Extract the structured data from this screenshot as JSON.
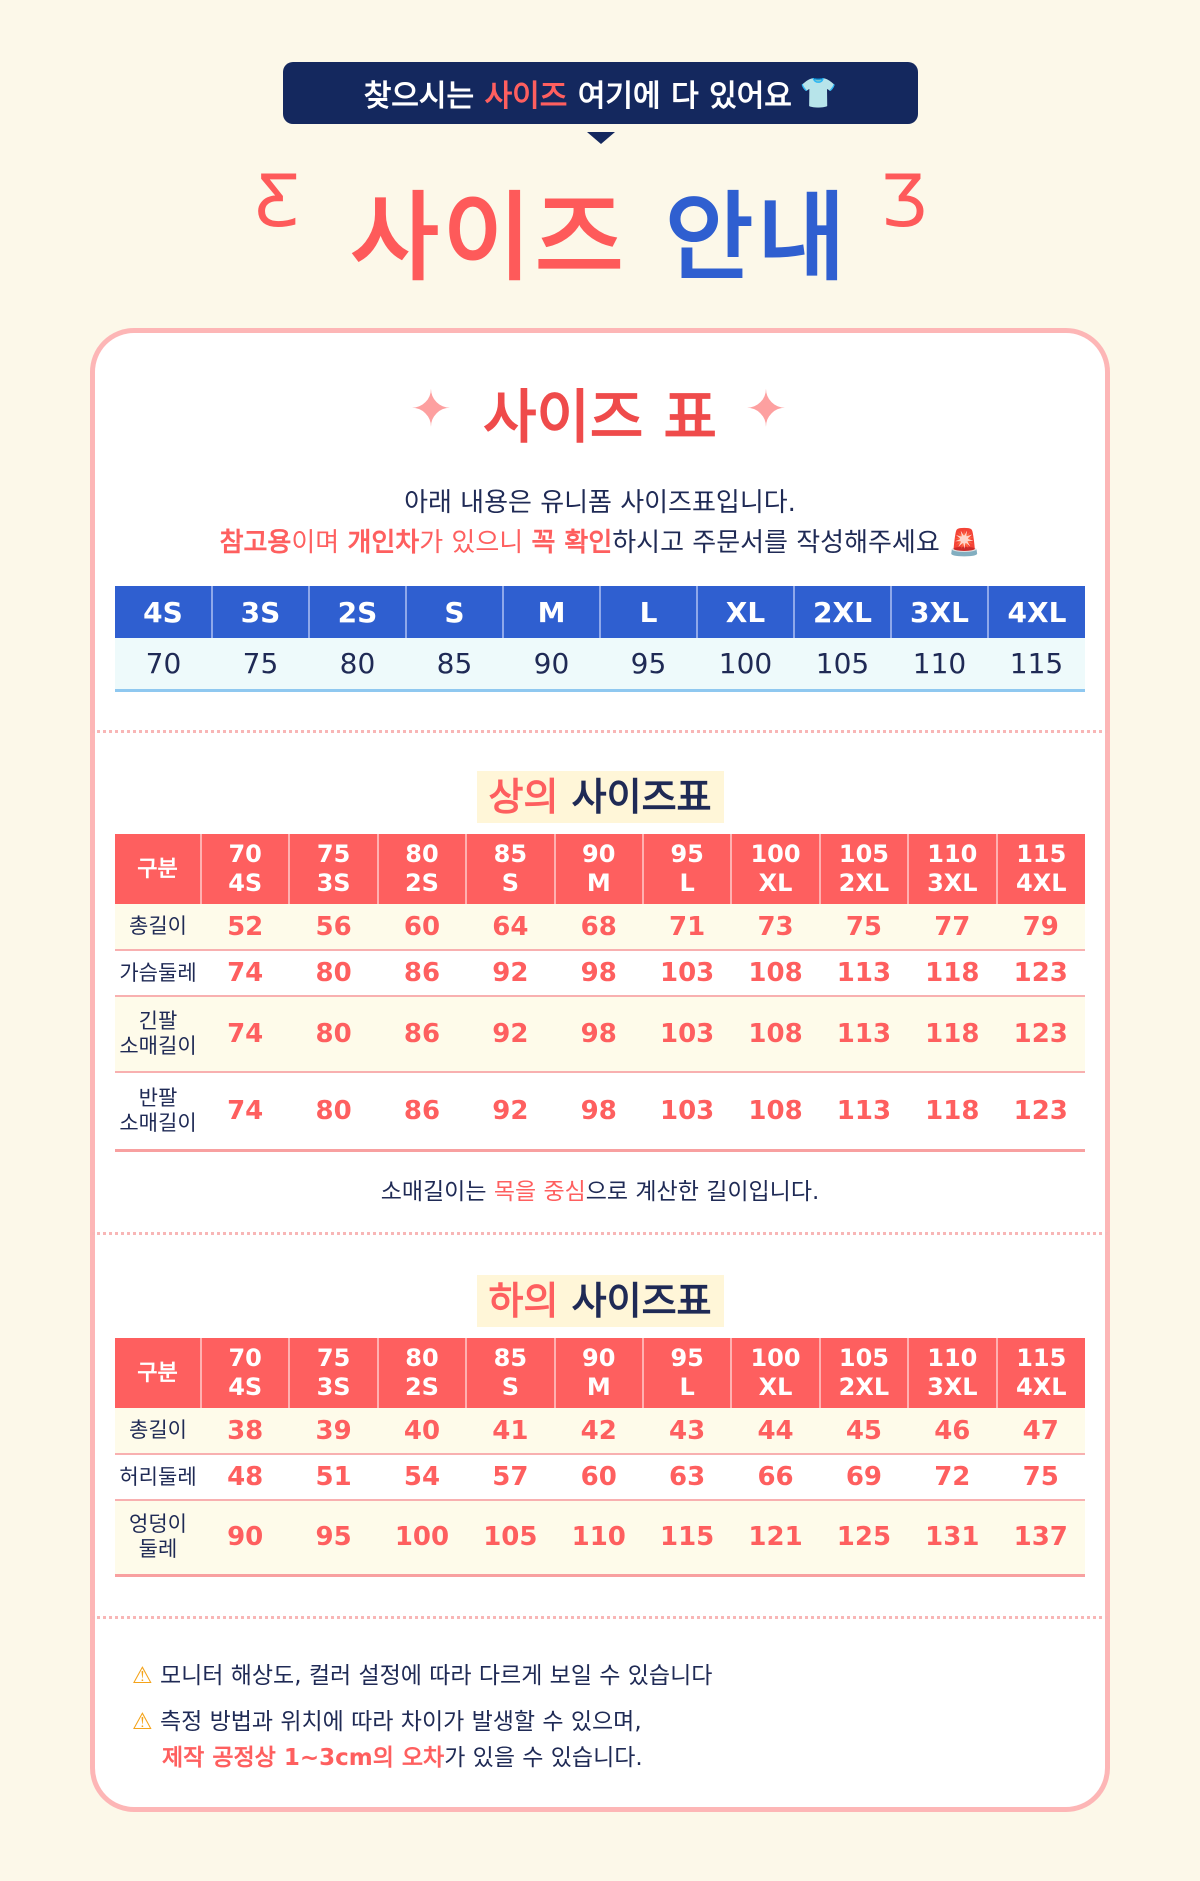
{
  "banner": {
    "pre": "찾으시는 ",
    "highlight": "사이즈",
    "post": " 여기에 다 있어요",
    "icon": "tshirt-icon"
  },
  "title": {
    "part1": "사이즈",
    "part2": "안내"
  },
  "card": {
    "heading": "사이즈 표",
    "intro1": "아래 내용은 유니폼 사이즈표입니다.",
    "intro2": {
      "h1": "참고용",
      "t1": "이며 ",
      "h2": "개인차",
      "t2": "가 있으니 ",
      "h3": "꼭 확인",
      "t3": "하시고 주문서를 작성해주세요",
      "icon": "siren-icon"
    },
    "size_table": {
      "headers": [
        "4S",
        "3S",
        "2S",
        "S",
        "M",
        "L",
        "XL",
        "2XL",
        "3XL",
        "4XL"
      ],
      "values": [
        "70",
        "75",
        "80",
        "85",
        "90",
        "95",
        "100",
        "105",
        "110",
        "115"
      ]
    },
    "top": {
      "title_h": "상의",
      "title": " 사이즈표",
      "corner": "구분",
      "cols": [
        [
          "70",
          "4S"
        ],
        [
          "75",
          "3S"
        ],
        [
          "80",
          "2S"
        ],
        [
          "85",
          "S"
        ],
        [
          "90",
          "M"
        ],
        [
          "95",
          "L"
        ],
        [
          "100",
          "XL"
        ],
        [
          "105",
          "2XL"
        ],
        [
          "110",
          "3XL"
        ],
        [
          "115",
          "4XL"
        ]
      ],
      "rows": [
        {
          "label": [
            "총길이"
          ],
          "values": [
            "52",
            "56",
            "60",
            "64",
            "68",
            "71",
            "73",
            "75",
            "77",
            "79"
          ]
        },
        {
          "label": [
            "가슴둘레"
          ],
          "values": [
            "74",
            "80",
            "86",
            "92",
            "98",
            "103",
            "108",
            "113",
            "118",
            "123"
          ]
        },
        {
          "label": [
            "긴팔",
            "소매길이"
          ],
          "values": [
            "74",
            "80",
            "86",
            "92",
            "98",
            "103",
            "108",
            "113",
            "118",
            "123"
          ]
        },
        {
          "label": [
            "반팔",
            "소매길이"
          ],
          "values": [
            "74",
            "80",
            "86",
            "92",
            "98",
            "103",
            "108",
            "113",
            "118",
            "123"
          ]
        }
      ],
      "note": {
        "t1": "소매길이는 ",
        "h1": "목을 중심",
        "t2": "으로 계산한 길이입니다."
      }
    },
    "bottom": {
      "title_h": "하의",
      "title": " 사이즈표",
      "corner": "구분",
      "cols": [
        [
          "70",
          "4S"
        ],
        [
          "75",
          "3S"
        ],
        [
          "80",
          "2S"
        ],
        [
          "85",
          "S"
        ],
        [
          "90",
          "M"
        ],
        [
          "95",
          "L"
        ],
        [
          "100",
          "XL"
        ],
        [
          "105",
          "2XL"
        ],
        [
          "110",
          "3XL"
        ],
        [
          "115",
          "4XL"
        ]
      ],
      "rows": [
        {
          "label": [
            "총길이"
          ],
          "values": [
            "38",
            "39",
            "40",
            "41",
            "42",
            "43",
            "44",
            "45",
            "46",
            "47"
          ]
        },
        {
          "label": [
            "허리둘레"
          ],
          "values": [
            "48",
            "51",
            "54",
            "57",
            "60",
            "63",
            "66",
            "69",
            "72",
            "75"
          ]
        },
        {
          "label": [
            "엉덩이",
            "둘레"
          ],
          "values": [
            "90",
            "95",
            "100",
            "105",
            "110",
            "115",
            "121",
            "125",
            "131",
            "137"
          ]
        }
      ]
    },
    "warnings": {
      "w1": "모니터 해상도, 컬러 설정에 따라 다르게 보일 수 있습니다",
      "w2": "측정 방법과 위치에 따라 차이가 발생할 수 있으며,",
      "w3h": "제작 공정상 1~3cm의 오차",
      "w3": "가 있을 수 있습니다."
    }
  },
  "colors": {
    "accent_red": "#fe5f5f",
    "navy": "#14285e",
    "blue": "#2f5fd0",
    "background": "#fcf8e9"
  }
}
